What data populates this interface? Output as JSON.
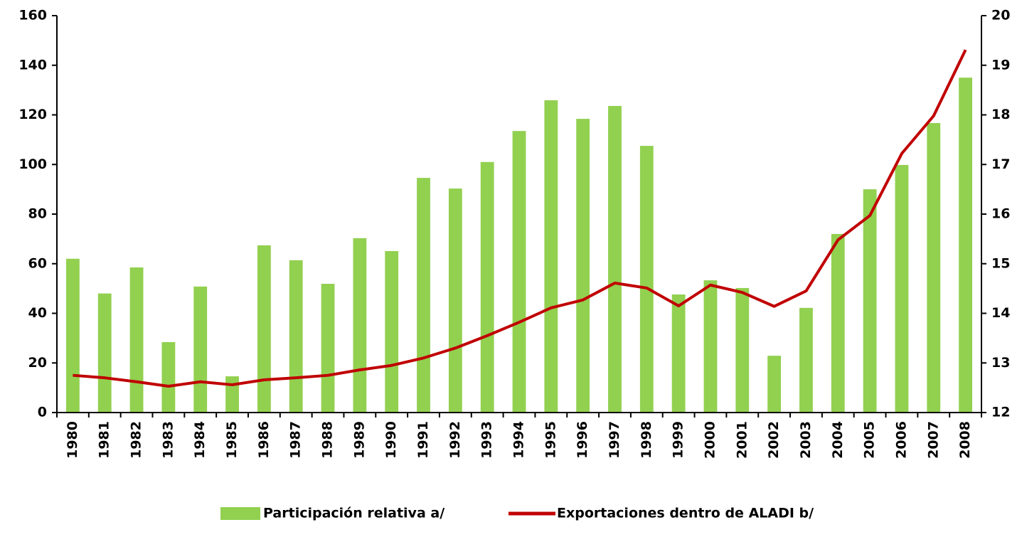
{
  "chart_data": {
    "type": "bar-line",
    "categories": [
      "1980",
      "1981",
      "1982",
      "1983",
      "1984",
      "1985",
      "1986",
      "1987",
      "1988",
      "1989",
      "1990",
      "1991",
      "1992",
      "1993",
      "1994",
      "1995",
      "1996",
      "1997",
      "1998",
      "1999",
      "2000",
      "2001",
      "2002",
      "2003",
      "2004",
      "2005",
      "2006",
      "2007",
      "2008"
    ],
    "series": [
      {
        "name": "Participación relativa a/",
        "type": "bar",
        "color": "#92d050",
        "values": [
          62,
          48,
          58.5,
          28.4,
          50.8,
          14.6,
          67.4,
          61.4,
          51.9,
          70.3,
          65.1,
          94.6,
          90.3,
          101,
          113.5,
          125.9,
          118.4,
          123.6,
          107.5,
          47.6,
          53.3,
          50.2,
          22.9,
          42.2,
          72,
          90,
          99.8,
          116.7,
          135
        ]
      },
      {
        "name": "Exportaciones dentro de ALADI b/",
        "type": "line",
        "color": "#c00000",
        "axis": "y2",
        "values": [
          12.75,
          12.7,
          12.62,
          12.53,
          12.62,
          12.56,
          12.66,
          12.7,
          12.75,
          12.86,
          12.95,
          13.1,
          13.3,
          13.55,
          13.82,
          14.11,
          14.27,
          14.61,
          14.51,
          14.15,
          14.57,
          14.42,
          14.14,
          14.45,
          15.48,
          15.97,
          17.22,
          17.98,
          19.31
        ]
      }
    ],
    "ylim": [
      0,
      160
    ],
    "yticks": [
      0,
      20,
      40,
      60,
      80,
      100,
      120,
      140,
      160
    ],
    "y2lim": [
      12,
      20
    ],
    "y2ticks": [
      12,
      13,
      14,
      15,
      16,
      17,
      18,
      19,
      20
    ],
    "legend": "bottom"
  }
}
